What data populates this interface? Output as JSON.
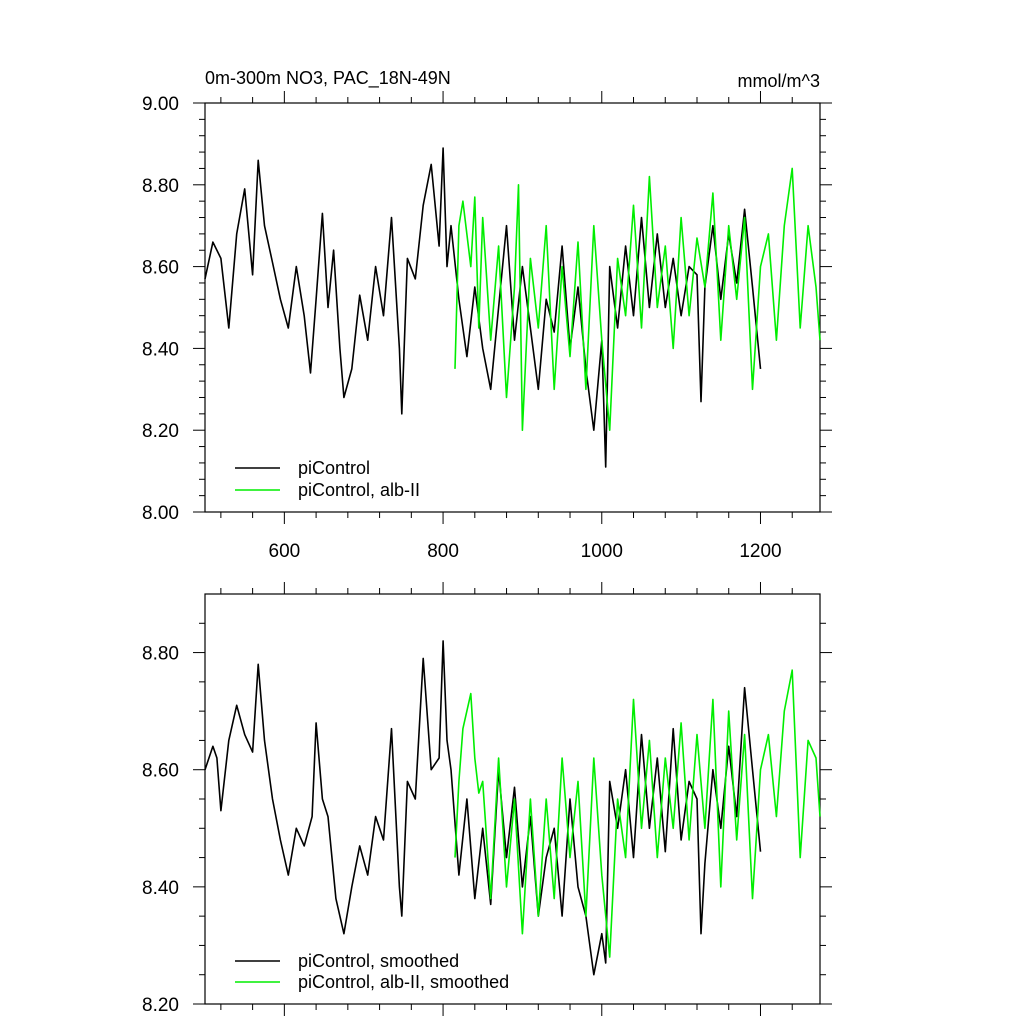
{
  "chart_data": [
    {
      "type": "line",
      "title_left": "0m-300m NO3, PAC_18N-49N",
      "title_right": "mmol/m^3",
      "xlim": [
        500,
        1275
      ],
      "ylim": [
        8.0,
        9.0
      ],
      "x_ticks": [
        600,
        800,
        1000,
        1200
      ],
      "x_tick_labels": [
        "600",
        "800",
        "1000",
        "1200"
      ],
      "y_ticks": [
        8.0,
        8.2,
        8.4,
        8.6,
        8.8,
        9.0
      ],
      "y_tick_labels": [
        "8.00",
        "8.20",
        "8.40",
        "8.60",
        "8.80",
        "9.00"
      ],
      "legend": [
        "piControl",
        "piControl, alb-II"
      ],
      "series": [
        {
          "name": "piControl",
          "color": "#000000",
          "x": [
            500,
            510,
            520,
            530,
            540,
            550,
            560,
            567,
            575,
            585,
            595,
            605,
            615,
            625,
            633,
            640,
            648,
            655,
            662,
            670,
            675,
            685,
            695,
            705,
            715,
            725,
            735,
            745,
            748,
            755,
            765,
            775,
            785,
            795,
            800,
            805,
            810,
            820,
            830,
            840,
            850,
            860,
            870,
            880,
            890,
            900,
            910,
            920,
            930,
            940,
            950,
            960,
            970,
            980,
            990,
            1000,
            1005,
            1010,
            1020,
            1030,
            1040,
            1050,
            1060,
            1070,
            1080,
            1090,
            1100,
            1110,
            1120,
            1125,
            1130,
            1140,
            1150,
            1160,
            1170,
            1180,
            1190,
            1200
          ],
          "values": [
            8.57,
            8.66,
            8.62,
            8.45,
            8.68,
            8.79,
            8.58,
            8.86,
            8.7,
            8.61,
            8.52,
            8.45,
            8.6,
            8.48,
            8.34,
            8.52,
            8.73,
            8.5,
            8.64,
            8.4,
            8.28,
            8.35,
            8.53,
            8.42,
            8.6,
            8.48,
            8.72,
            8.4,
            8.24,
            8.62,
            8.57,
            8.75,
            8.85,
            8.65,
            8.89,
            8.6,
            8.7,
            8.52,
            8.38,
            8.55,
            8.4,
            8.3,
            8.5,
            8.7,
            8.42,
            8.6,
            8.45,
            8.3,
            8.52,
            8.44,
            8.65,
            8.4,
            8.55,
            8.35,
            8.2,
            8.42,
            8.11,
            8.6,
            8.45,
            8.65,
            8.48,
            8.72,
            8.5,
            8.68,
            8.5,
            8.62,
            8.48,
            8.6,
            8.58,
            8.27,
            8.55,
            8.7,
            8.52,
            8.68,
            8.56,
            8.74,
            8.55,
            8.35
          ]
        },
        {
          "name": "piControl, alb-II",
          "color": "#00ee00",
          "x": [
            815,
            820,
            825,
            835,
            840,
            845,
            850,
            860,
            870,
            880,
            890,
            895,
            900,
            910,
            920,
            930,
            940,
            950,
            960,
            970,
            980,
            990,
            1000,
            1010,
            1020,
            1030,
            1040,
            1050,
            1060,
            1070,
            1080,
            1090,
            1100,
            1110,
            1120,
            1130,
            1140,
            1150,
            1160,
            1170,
            1180,
            1190,
            1200,
            1210,
            1220,
            1230,
            1240,
            1250,
            1260,
            1270,
            1275
          ],
          "values": [
            8.35,
            8.7,
            8.76,
            8.6,
            8.77,
            8.45,
            8.72,
            8.42,
            8.65,
            8.28,
            8.55,
            8.8,
            8.2,
            8.62,
            8.45,
            8.7,
            8.3,
            8.6,
            8.38,
            8.66,
            8.3,
            8.7,
            8.42,
            8.2,
            8.62,
            8.48,
            8.75,
            8.45,
            8.82,
            8.5,
            8.65,
            8.4,
            8.72,
            8.48,
            8.67,
            8.55,
            8.78,
            8.42,
            8.7,
            8.52,
            8.72,
            8.3,
            8.6,
            8.68,
            8.42,
            8.7,
            8.84,
            8.45,
            8.7,
            8.55,
            8.42
          ]
        }
      ]
    },
    {
      "type": "line",
      "xlim": [
        500,
        1275
      ],
      "ylim": [
        8.2,
        8.9
      ],
      "x_ticks": [
        600,
        800,
        1000,
        1200
      ],
      "y_ticks": [
        8.2,
        8.4,
        8.6,
        8.8
      ],
      "y_tick_labels": [
        "8.20",
        "8.40",
        "8.60",
        "8.80"
      ],
      "legend": [
        "piControl, smoothed",
        "piControl, alb-II, smoothed"
      ],
      "series": [
        {
          "name": "piControl, smoothed",
          "color": "#000000",
          "x": [
            500,
            510,
            515,
            520,
            530,
            540,
            550,
            560,
            567,
            575,
            585,
            595,
            605,
            615,
            625,
            635,
            640,
            648,
            655,
            665,
            675,
            685,
            695,
            705,
            715,
            725,
            735,
            745,
            748,
            755,
            765,
            775,
            785,
            795,
            800,
            805,
            810,
            820,
            830,
            840,
            850,
            860,
            870,
            880,
            890,
            900,
            910,
            920,
            930,
            940,
            950,
            960,
            970,
            980,
            990,
            1000,
            1005,
            1010,
            1020,
            1030,
            1040,
            1050,
            1060,
            1070,
            1080,
            1090,
            1100,
            1110,
            1120,
            1125,
            1130,
            1140,
            1150,
            1160,
            1170,
            1180,
            1190,
            1200
          ],
          "values": [
            8.6,
            8.64,
            8.62,
            8.53,
            8.65,
            8.71,
            8.66,
            8.63,
            8.78,
            8.65,
            8.55,
            8.48,
            8.42,
            8.5,
            8.47,
            8.52,
            8.68,
            8.55,
            8.52,
            8.38,
            8.32,
            8.4,
            8.47,
            8.42,
            8.52,
            8.48,
            8.67,
            8.4,
            8.35,
            8.58,
            8.55,
            8.79,
            8.6,
            8.62,
            8.82,
            8.65,
            8.6,
            8.42,
            8.55,
            8.38,
            8.5,
            8.37,
            8.6,
            8.45,
            8.57,
            8.4,
            8.52,
            8.35,
            8.45,
            8.5,
            8.35,
            8.55,
            8.4,
            8.35,
            8.25,
            8.32,
            8.27,
            8.58,
            8.5,
            8.6,
            8.45,
            8.66,
            8.5,
            8.62,
            8.46,
            8.67,
            8.48,
            8.58,
            8.55,
            8.32,
            8.44,
            8.6,
            8.5,
            8.64,
            8.52,
            8.74,
            8.6,
            8.46
          ]
        },
        {
          "name": "piControl, alb-II, smoothed",
          "color": "#00ee00",
          "x": [
            815,
            820,
            825,
            835,
            840,
            845,
            850,
            860,
            870,
            880,
            890,
            900,
            910,
            920,
            930,
            940,
            950,
            960,
            970,
            980,
            990,
            1000,
            1010,
            1020,
            1030,
            1040,
            1050,
            1060,
            1070,
            1080,
            1090,
            1100,
            1110,
            1120,
            1130,
            1140,
            1150,
            1160,
            1170,
            1180,
            1190,
            1200,
            1210,
            1220,
            1230,
            1240,
            1250,
            1260,
            1270,
            1275
          ],
          "values": [
            8.45,
            8.58,
            8.67,
            8.73,
            8.62,
            8.56,
            8.58,
            8.38,
            8.62,
            8.4,
            8.55,
            8.32,
            8.55,
            8.35,
            8.55,
            8.38,
            8.62,
            8.45,
            8.58,
            8.35,
            8.62,
            8.42,
            8.28,
            8.55,
            8.45,
            8.72,
            8.5,
            8.65,
            8.45,
            8.62,
            8.5,
            8.68,
            8.48,
            8.66,
            8.5,
            8.72,
            8.4,
            8.7,
            8.48,
            8.66,
            8.38,
            8.6,
            8.66,
            8.52,
            8.7,
            8.77,
            8.45,
            8.65,
            8.62,
            8.52
          ]
        }
      ]
    }
  ]
}
